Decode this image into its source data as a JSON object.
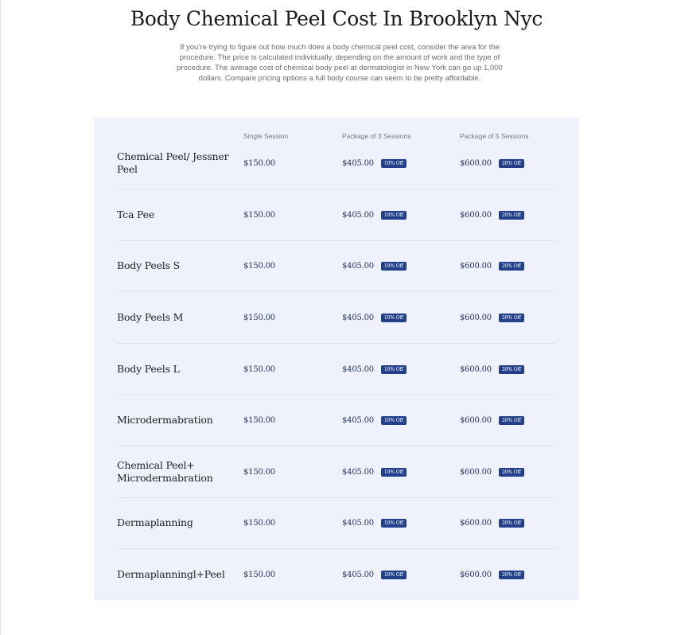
{
  "title": "Body Chemical Peel Cost In Brooklyn Nyc",
  "intro": "If you’re trying to figure out how much does a body chemical peel cost, consider the area for the procedure. The price is calculated individually, depending on the amount of work and the type of procedure. The average cost of chemical body peel at dermatologist in New York can go up 1,000 dollars. Compare pricing options  a full body course can seem to be pretty affordable.",
  "table": {
    "headers": {
      "single": "Single Session",
      "pkg3": "Package of 3 Sessions",
      "pkg5": "Package of 5 Sessions"
    },
    "rows": [
      {
        "name": "Chemical Peel/ Jessner Peel",
        "single": "$150.00",
        "pkg3": "$405.00",
        "pkg3_badge": "10% Off",
        "pkg5": "$600.00",
        "pkg5_badge": "20% Off"
      },
      {
        "name": "Tca Pee",
        "single": "$150.00",
        "pkg3": "$405.00",
        "pkg3_badge": "10% Off",
        "pkg5": "$600.00",
        "pkg5_badge": "20% Off"
      },
      {
        "name": "Body Peels S",
        "single": "$150.00",
        "pkg3": "$405.00",
        "pkg3_badge": "10% Off",
        "pkg5": "$600.00",
        "pkg5_badge": "20% Off"
      },
      {
        "name": "Body Peels M",
        "single": "$150.00",
        "pkg3": "$405.00",
        "pkg3_badge": "10% Off",
        "pkg5": "$600.00",
        "pkg5_badge": "20% Off"
      },
      {
        "name": "Body Peels L",
        "single": "$150.00",
        "pkg3": "$405.00",
        "pkg3_badge": "10% Off",
        "pkg5": "$600.00",
        "pkg5_badge": "20% Off"
      },
      {
        "name": "Microdermabration",
        "single": "$150.00",
        "pkg3": "$405.00",
        "pkg3_badge": "10% Off",
        "pkg5": "$600.00",
        "pkg5_badge": "20% Off"
      },
      {
        "name": "Chemical Peel+ Microdermabration",
        "single": "$150.00",
        "pkg3": "$405.00",
        "pkg3_badge": "10% Off",
        "pkg5": "$600.00",
        "pkg5_badge": "20% Off"
      },
      {
        "name": "Dermaplanning",
        "single": "$150.00",
        "pkg3": "$405.00",
        "pkg3_badge": "10% Off",
        "pkg5": "$600.00",
        "pkg5_badge": "20% Off"
      },
      {
        "name": "Dermaplanningl+Peel",
        "single": "$150.00",
        "pkg3": "$405.00",
        "pkg3_badge": "10% Off",
        "pkg5": "$600.00",
        "pkg5_badge": "20% Off"
      }
    ]
  },
  "colors": {
    "panel_bg": "#eff1fc",
    "badge_bg": "#22418a",
    "price_text": "#24325f"
  }
}
